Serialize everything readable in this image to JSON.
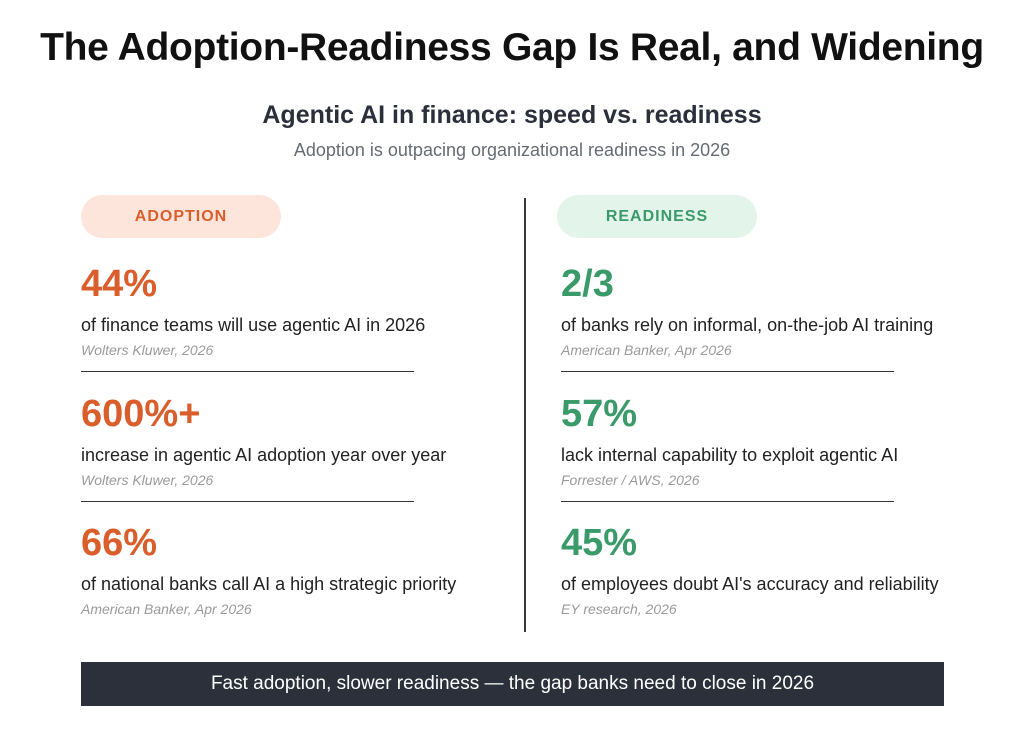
{
  "title": "The Adoption-Readiness Gap Is Real, and Widening",
  "subtitle": "Agentic AI in finance: speed vs. readiness",
  "tagline": "Adoption is outpacing organizational readiness in 2026",
  "colors": {
    "adoption": "#d95e2b",
    "readiness": "#3a9a6a",
    "footer_bg": "#2b303b"
  },
  "adoption": {
    "label": "ADOPTION",
    "stats": [
      {
        "value": "44%",
        "desc": "of finance teams will use agentic AI in 2026",
        "source": "Wolters Kluwer, 2026"
      },
      {
        "value": "600%+",
        "desc": "increase in agentic AI adoption year over year",
        "source": "Wolters Kluwer, 2026"
      },
      {
        "value": "66%",
        "desc": "of national banks call AI a high strategic priority",
        "source": "American Banker, Apr 2026"
      }
    ]
  },
  "readiness": {
    "label": "READINESS",
    "stats": [
      {
        "value": "2/3",
        "desc": "of banks rely on informal, on-the-job AI training",
        "source": "American Banker, Apr 2026"
      },
      {
        "value": "57%",
        "desc": "lack internal capability to exploit agentic AI",
        "source": "Forrester / AWS, 2026"
      },
      {
        "value": "45%",
        "desc": "of employees doubt AI's accuracy and reliability",
        "source": "EY research, 2026"
      }
    ]
  },
  "footer": "Fast adoption, slower readiness — the gap banks need to close in 2026"
}
